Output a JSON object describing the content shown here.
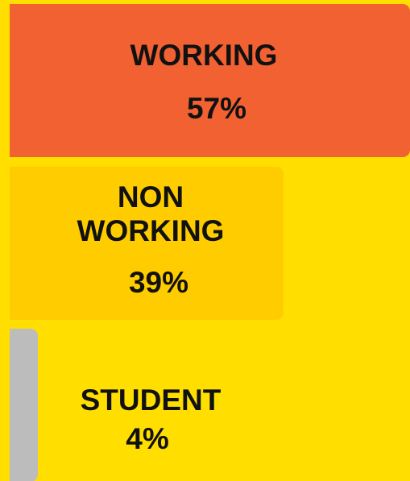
{
  "chart_data": {
    "type": "bar",
    "categories": [
      "WORKING",
      "NON WORKING",
      "STUDENT"
    ],
    "values": [
      57,
      39,
      4
    ],
    "value_labels": [
      "57%",
      "39%",
      "4%"
    ],
    "colors": [
      "#f26132",
      "#ffcc00",
      "#bcbcbc"
    ],
    "background": "#ffde00"
  }
}
